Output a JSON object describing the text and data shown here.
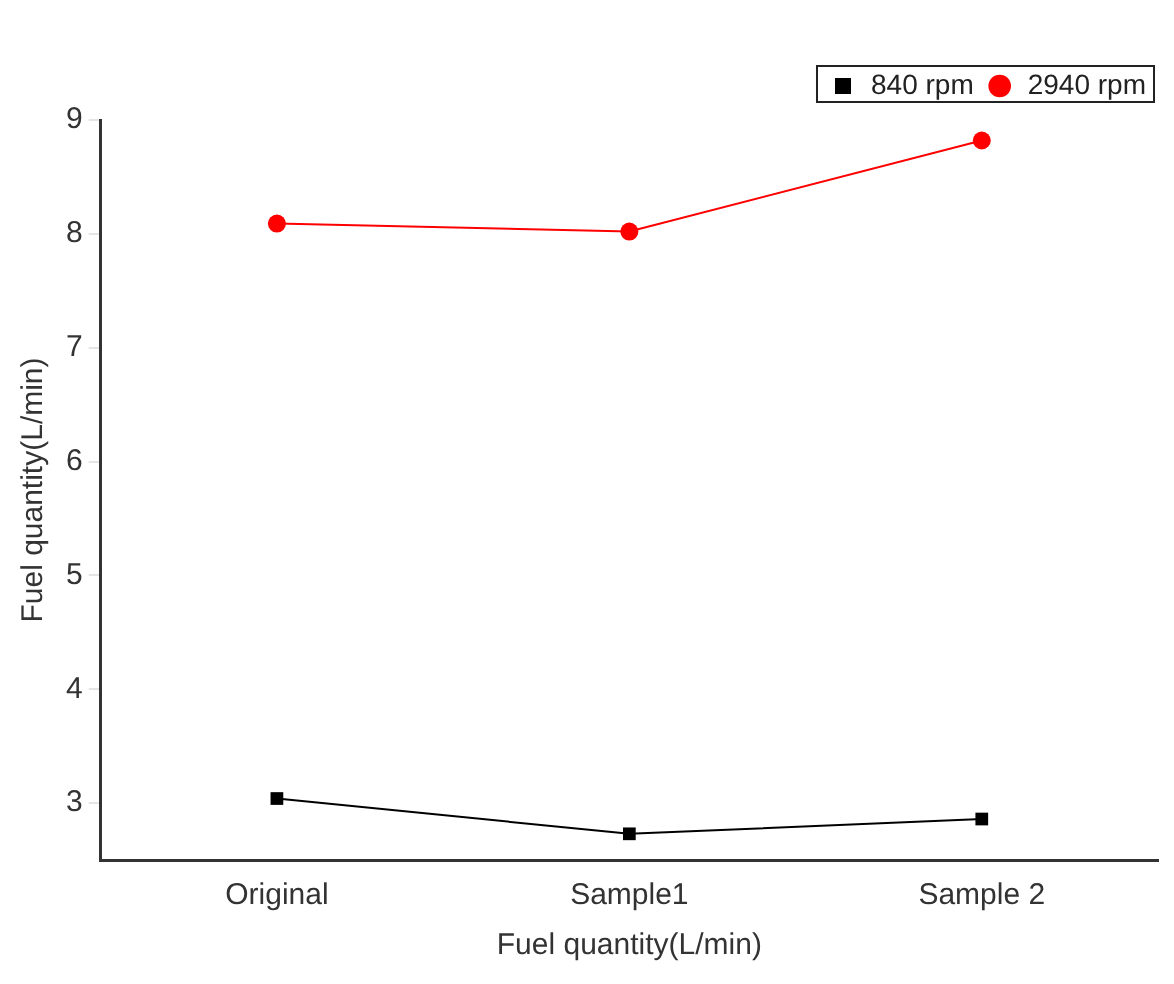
{
  "chart_data": {
    "type": "line",
    "xlabel": "Fuel quantity(L/min)",
    "ylabel": "Fuel quantity(L/min)",
    "categories": [
      "Original",
      "Sample1",
      "Sample 2"
    ],
    "series": [
      {
        "name": "840 rpm",
        "color": "#000000",
        "marker": "square",
        "values": [
          3.04,
          2.73,
          2.86
        ]
      },
      {
        "name": "2940 rpm",
        "color": "#ff0000",
        "marker": "circle",
        "values": [
          8.09,
          8.02,
          8.82
        ]
      }
    ],
    "ylim": [
      2.5,
      9
    ],
    "yticks": [
      3,
      4,
      5,
      6,
      7,
      8,
      9
    ],
    "grid": false,
    "legend": "top right",
    "line_style": "solid"
  }
}
